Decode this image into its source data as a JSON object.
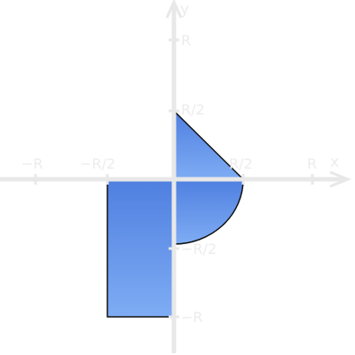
{
  "axes": {
    "x_label": "x",
    "y_label": "y",
    "color": "#e8e8e8"
  },
  "ticks": {
    "x_neg_r": "−R",
    "x_neg_half": "−R/2",
    "x_pos_half": "R/2",
    "x_pos_r": "R",
    "y_pos_r": "R",
    "y_pos_half": "R/2",
    "y_neg_half": "−R/2",
    "y_neg_r": "−R"
  },
  "region": {
    "fill_top": "#4f7fe0",
    "fill_bottom": "#7eacf4",
    "stroke": "#111111"
  }
}
